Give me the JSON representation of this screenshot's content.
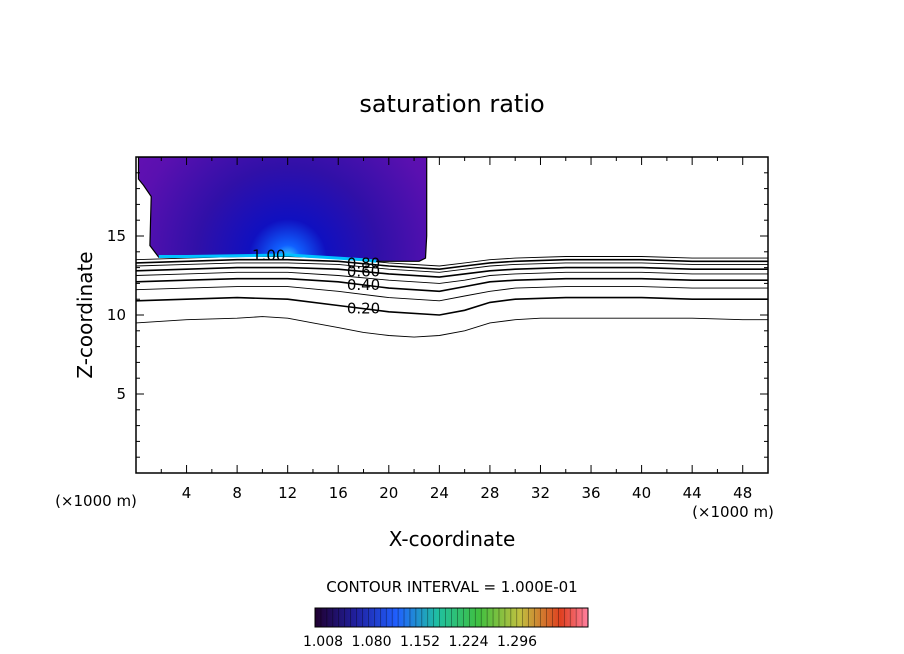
{
  "chart_data": {
    "type": "contour",
    "title": "saturation ratio",
    "xlabel": "X-coordinate",
    "ylabel": "Z-coordinate",
    "x_unit": "(×1000 m)",
    "z_unit": "(×1000 m)",
    "xlim": [
      0,
      50
    ],
    "ylim": [
      0,
      20
    ],
    "x_ticks": [
      4,
      8,
      12,
      16,
      20,
      24,
      28,
      32,
      36,
      40,
      44,
      48
    ],
    "y_ticks": [
      5,
      10,
      15
    ],
    "contour_interval_text": "CONTOUR INTERVAL = 1.000E-01",
    "contour_lines": [
      {
        "level": 0.1,
        "label": "",
        "points": [
          [
            0,
            9.5
          ],
          [
            4,
            9.7
          ],
          [
            8,
            9.8
          ],
          [
            10,
            9.9
          ],
          [
            12,
            9.8
          ],
          [
            14,
            9.5
          ],
          [
            16,
            9.2
          ],
          [
            18,
            8.9
          ],
          [
            20,
            8.7
          ],
          [
            22,
            8.6
          ],
          [
            24,
            8.7
          ],
          [
            26,
            9.0
          ],
          [
            28,
            9.5
          ],
          [
            30,
            9.7
          ],
          [
            32,
            9.8
          ],
          [
            36,
            9.8
          ],
          [
            40,
            9.8
          ],
          [
            44,
            9.8
          ],
          [
            48,
            9.7
          ],
          [
            50,
            9.7
          ]
        ]
      },
      {
        "level": 0.2,
        "label": "0.20",
        "points": [
          [
            0,
            10.9
          ],
          [
            4,
            11.0
          ],
          [
            8,
            11.1
          ],
          [
            12,
            11.0
          ],
          [
            16,
            10.6
          ],
          [
            20,
            10.2
          ],
          [
            24,
            10.0
          ],
          [
            26,
            10.3
          ],
          [
            28,
            10.8
          ],
          [
            30,
            11.0
          ],
          [
            34,
            11.1
          ],
          [
            40,
            11.1
          ],
          [
            44,
            11.0
          ],
          [
            50,
            11.0
          ]
        ]
      },
      {
        "level": 0.3,
        "label": "",
        "points": [
          [
            0,
            11.6
          ],
          [
            4,
            11.7
          ],
          [
            8,
            11.8
          ],
          [
            12,
            11.8
          ],
          [
            16,
            11.5
          ],
          [
            20,
            11.1
          ],
          [
            24,
            10.9
          ],
          [
            26,
            11.2
          ],
          [
            28,
            11.5
          ],
          [
            30,
            11.7
          ],
          [
            34,
            11.8
          ],
          [
            40,
            11.8
          ],
          [
            44,
            11.7
          ],
          [
            50,
            11.7
          ]
        ]
      },
      {
        "level": 0.4,
        "label": "0.40",
        "points": [
          [
            0,
            12.1
          ],
          [
            4,
            12.2
          ],
          [
            8,
            12.3
          ],
          [
            12,
            12.3
          ],
          [
            16,
            12.1
          ],
          [
            20,
            11.7
          ],
          [
            24,
            11.5
          ],
          [
            26,
            11.8
          ],
          [
            28,
            12.1
          ],
          [
            30,
            12.2
          ],
          [
            34,
            12.3
          ],
          [
            40,
            12.3
          ],
          [
            44,
            12.2
          ],
          [
            50,
            12.2
          ]
        ]
      },
      {
        "level": 0.5,
        "label": "",
        "points": [
          [
            0,
            12.5
          ],
          [
            4,
            12.6
          ],
          [
            8,
            12.7
          ],
          [
            12,
            12.7
          ],
          [
            16,
            12.5
          ],
          [
            20,
            12.2
          ],
          [
            24,
            12.0
          ],
          [
            26,
            12.2
          ],
          [
            28,
            12.5
          ],
          [
            30,
            12.6
          ],
          [
            34,
            12.7
          ],
          [
            40,
            12.7
          ],
          [
            44,
            12.6
          ],
          [
            50,
            12.6
          ]
        ]
      },
      {
        "level": 0.6,
        "label": "0.60",
        "points": [
          [
            0,
            12.8
          ],
          [
            4,
            12.9
          ],
          [
            8,
            13.0
          ],
          [
            12,
            13.0
          ],
          [
            16,
            12.9
          ],
          [
            20,
            12.6
          ],
          [
            24,
            12.4
          ],
          [
            26,
            12.6
          ],
          [
            28,
            12.8
          ],
          [
            30,
            12.9
          ],
          [
            34,
            13.0
          ],
          [
            40,
            13.0
          ],
          [
            44,
            12.9
          ],
          [
            50,
            12.9
          ]
        ]
      },
      {
        "level": 0.7,
        "label": "",
        "points": [
          [
            0,
            13.1
          ],
          [
            4,
            13.2
          ],
          [
            8,
            13.3
          ],
          [
            12,
            13.3
          ],
          [
            16,
            13.2
          ],
          [
            20,
            12.9
          ],
          [
            24,
            12.7
          ],
          [
            26,
            12.9
          ],
          [
            28,
            13.1
          ],
          [
            30,
            13.2
          ],
          [
            34,
            13.3
          ],
          [
            40,
            13.3
          ],
          [
            44,
            13.2
          ],
          [
            50,
            13.2
          ]
        ]
      },
      {
        "level": 0.8,
        "label": "0.80",
        "points": [
          [
            0,
            13.3
          ],
          [
            4,
            13.4
          ],
          [
            8,
            13.5
          ],
          [
            12,
            13.5
          ],
          [
            16,
            13.4
          ],
          [
            20,
            13.1
          ],
          [
            24,
            12.9
          ],
          [
            26,
            13.1
          ],
          [
            28,
            13.3
          ],
          [
            30,
            13.4
          ],
          [
            34,
            13.5
          ],
          [
            40,
            13.5
          ],
          [
            44,
            13.4
          ],
          [
            50,
            13.4
          ]
        ]
      },
      {
        "level": 0.9,
        "label": "",
        "points": [
          [
            0,
            13.5
          ],
          [
            4,
            13.6
          ],
          [
            8,
            13.7
          ],
          [
            12,
            13.7
          ],
          [
            16,
            13.6
          ],
          [
            20,
            13.3
          ],
          [
            24,
            13.1
          ],
          [
            26,
            13.3
          ],
          [
            28,
            13.5
          ],
          [
            30,
            13.6
          ],
          [
            34,
            13.7
          ],
          [
            40,
            13.7
          ],
          [
            44,
            13.6
          ],
          [
            50,
            13.6
          ]
        ]
      },
      {
        "level": 1.0,
        "label": "1.00",
        "points": [
          [
            1.8,
            13.7
          ],
          [
            4,
            13.7
          ],
          [
            8,
            13.75
          ],
          [
            12,
            13.8
          ],
          [
            16,
            13.6
          ],
          [
            18,
            13.5
          ],
          [
            19,
            13.4
          ]
        ]
      }
    ],
    "filled_region": {
      "description_levels": "values above 1.0 (supersaturated)",
      "x_range": [
        0,
        23
      ],
      "z_range": [
        13.4,
        20
      ],
      "colorbar": {
        "ticks": [
          "1.008",
          "1.080",
          "1.152",
          "1.224",
          "1.296"
        ],
        "min": 1.008,
        "max": 1.33
      }
    }
  }
}
